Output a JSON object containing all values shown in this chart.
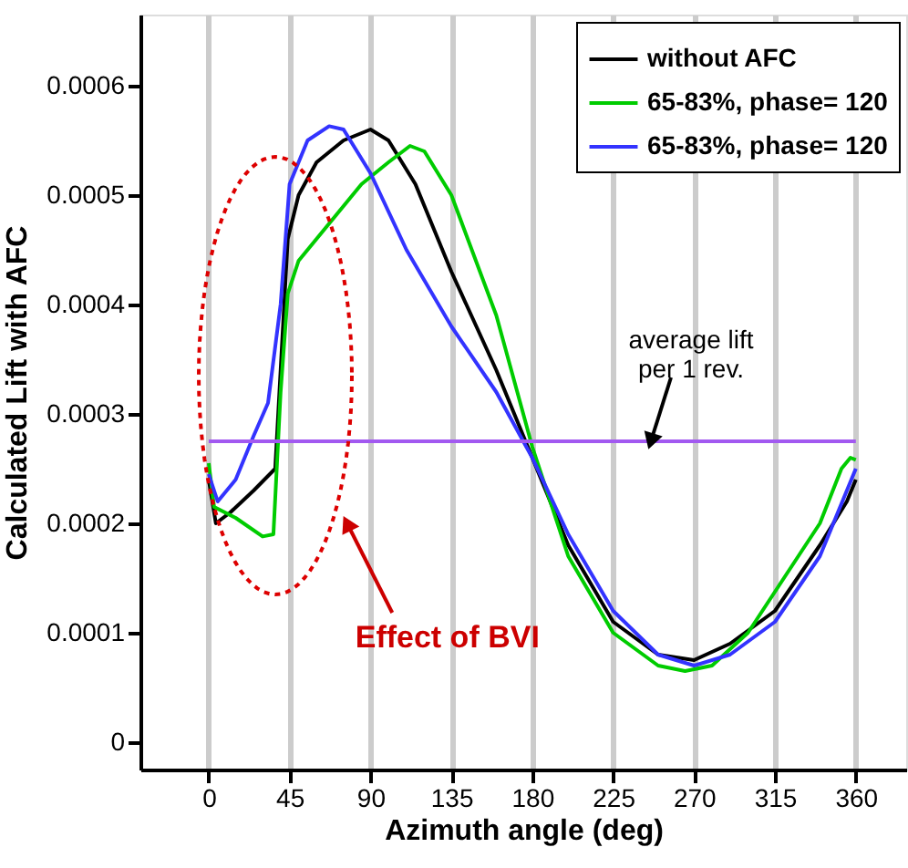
{
  "chart_data": {
    "type": "line",
    "xlabel": "Azimuth angle (deg)",
    "ylabel": "Calculated Lift with AFC",
    "xlim": [
      -38,
      388
    ],
    "ylim": [
      -2.5e-05,
      0.000665
    ],
    "xticks": [
      0,
      45,
      90,
      135,
      180,
      225,
      270,
      315,
      360
    ],
    "yticks": [
      0,
      0.0001,
      0.0002,
      0.0003,
      0.0004,
      0.0005,
      0.0006
    ],
    "grid": "x",
    "legend": "top right",
    "line_style": "solid",
    "marker": "none",
    "series": [
      {
        "name": "without AFC",
        "color": "#000000",
        "x": [
          0,
          4,
          12,
          25,
          37,
          44,
          50,
          60,
          75,
          90,
          100,
          115,
          135,
          160,
          180,
          200,
          225,
          250,
          270,
          290,
          315,
          340,
          355,
          360
        ],
        "values": [
          0.00024,
          0.0002,
          0.00021,
          0.00023,
          0.00025,
          0.00046,
          0.0005,
          0.00053,
          0.00055,
          0.00056,
          0.00055,
          0.00051,
          0.00043,
          0.00034,
          0.00026,
          0.00018,
          0.00011,
          8e-05,
          7.5e-05,
          9e-05,
          0.00012,
          0.00018,
          0.00022,
          0.00024
        ]
      },
      {
        "name": "65-83%, phase= 120",
        "color": "#00cc00",
        "x": [
          0,
          3,
          15,
          30,
          36,
          40,
          44,
          50,
          65,
          85,
          100,
          112,
          120,
          135,
          160,
          180,
          200,
          225,
          250,
          265,
          280,
          300,
          320,
          340,
          352,
          357,
          360
        ],
        "values": [
          0.000255,
          0.000215,
          0.000205,
          0.000188,
          0.00019,
          0.00032,
          0.00041,
          0.00044,
          0.00047,
          0.00051,
          0.00053,
          0.000545,
          0.00054,
          0.0005,
          0.00039,
          0.00027,
          0.00017,
          0.0001,
          7e-05,
          6.5e-05,
          7e-05,
          0.0001,
          0.00015,
          0.0002,
          0.00025,
          0.00026,
          0.000258
        ]
      },
      {
        "name": "65-83%, phase= 120",
        "color": "#3333ff",
        "x": [
          0,
          5,
          15,
          25,
          33,
          40,
          45,
          55,
          67,
          75,
          90,
          110,
          135,
          160,
          180,
          200,
          225,
          250,
          270,
          290,
          315,
          340,
          355,
          360
        ],
        "values": [
          0.000245,
          0.00022,
          0.00024,
          0.00028,
          0.00031,
          0.0004,
          0.00051,
          0.00055,
          0.000563,
          0.00056,
          0.00052,
          0.00045,
          0.00038,
          0.00032,
          0.00026,
          0.00019,
          0.00012,
          8e-05,
          7e-05,
          8e-05,
          0.00011,
          0.00017,
          0.00023,
          0.00025
        ]
      },
      {
        "color": "#a259f0",
        "x": [
          0,
          360
        ],
        "values": [
          0.000275,
          0.000275
        ]
      }
    ],
    "annotations": [
      {
        "text": "average lift\nper 1 rev.",
        "x": 246,
        "y": 0.000275
      },
      {
        "text": "Effect of BVI",
        "x": 77,
        "y": 0.0002
      }
    ]
  }
}
